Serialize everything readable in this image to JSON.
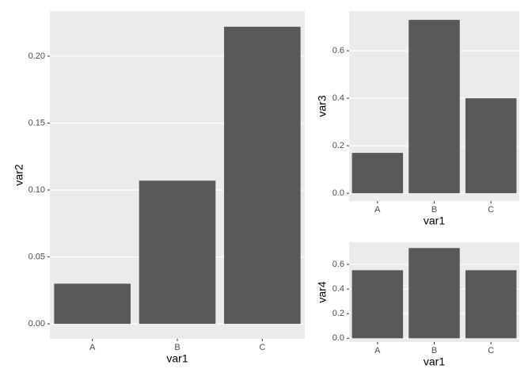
{
  "chart_data": [
    {
      "type": "bar",
      "x_label": "var1",
      "y_label": "var2",
      "categories": [
        "A",
        "B",
        "C"
      ],
      "values": [
        0.03,
        0.107,
        0.222
      ],
      "color": "#595959",
      "ylim": [
        -0.0112,
        0.2337
      ],
      "yticks": [
        {
          "value": 0,
          "label": "0.00"
        },
        {
          "value": 0.05,
          "label": "0.05"
        },
        {
          "value": 0.1,
          "label": "0.10"
        },
        {
          "value": 0.15,
          "label": "0.15"
        },
        {
          "value": 0.2,
          "label": "0.20"
        }
      ],
      "grid": true
    },
    {
      "type": "bar",
      "x_label": "var1",
      "y_label": "var3",
      "categories": [
        "A",
        "B",
        "C"
      ],
      "values": [
        0.17,
        0.73,
        0.4
      ],
      "color": "#595959",
      "ylim": [
        -0.033,
        0.767
      ],
      "yticks": [
        {
          "value": 0,
          "label": "0.0"
        },
        {
          "value": 0.2,
          "label": "0.2"
        },
        {
          "value": 0.4,
          "label": "0.4"
        },
        {
          "value": 0.6,
          "label": "0.6"
        }
      ],
      "grid": true
    },
    {
      "type": "bar",
      "x_label": "var1",
      "y_label": "var4",
      "categories": [
        "A",
        "B",
        "C"
      ],
      "values": [
        0.553,
        0.733,
        0.553
      ],
      "color": "#595959",
      "ylim": [
        -0.03,
        0.78
      ],
      "yticks": [
        {
          "value": 0,
          "label": "0.0"
        },
        {
          "value": 0.2,
          "label": "0.2"
        },
        {
          "value": 0.4,
          "label": "0.4"
        },
        {
          "value": 0.6,
          "label": "0.6"
        }
      ],
      "grid": true
    }
  ]
}
